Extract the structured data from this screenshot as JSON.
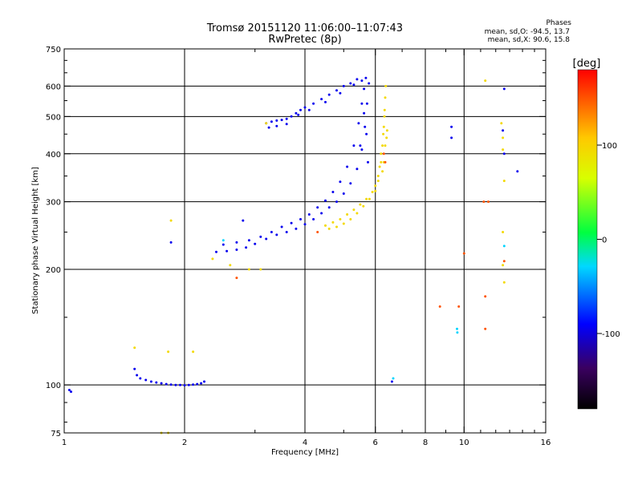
{
  "titles": {
    "line1": "Tromsø 20151120 11:06:00–11:07:43",
    "line2": "RwPretec (8p)"
  },
  "phases": {
    "heading": "Phases",
    "o_line": "mean, sd,O: -94.5, 13.7",
    "x_line": "mean, sd,X: 90.6, 15.8"
  },
  "chart_data": {
    "type": "scatter",
    "xlabel": "Frequency [MHz]",
    "ylabel": "Stationary phase Virtual Height [km]",
    "xscale": "log",
    "yscale": "log",
    "xlim": [
      1,
      16
    ],
    "ylim": [
      75,
      750
    ],
    "xticks": [
      1,
      2,
      4,
      6,
      8,
      10,
      16
    ],
    "yticks": [
      75,
      100,
      200,
      300,
      400,
      500,
      600,
      750
    ],
    "xgrid": [
      2,
      4,
      6,
      8,
      10
    ],
    "ygrid": [
      100,
      200,
      300,
      400,
      500,
      600
    ],
    "colorbar": {
      "label": "[deg]",
      "range": [
        -180,
        180
      ],
      "ticks": [
        100,
        0,
        -100
      ]
    },
    "series": [
      {
        "phase_deg": -95,
        "points": [
          [
            1.03,
            97
          ],
          [
            1.04,
            96
          ],
          [
            1.5,
            110
          ],
          [
            1.52,
            106
          ],
          [
            1.55,
            104
          ],
          [
            1.6,
            103
          ],
          [
            1.65,
            102
          ],
          [
            1.7,
            101.5
          ],
          [
            1.75,
            101
          ],
          [
            1.8,
            100.5
          ],
          [
            1.85,
            100.2
          ],
          [
            1.9,
            100
          ],
          [
            1.95,
            100
          ],
          [
            2.0,
            99.8
          ],
          [
            2.05,
            100
          ],
          [
            2.1,
            100.2
          ],
          [
            2.15,
            100.5
          ],
          [
            2.2,
            101
          ],
          [
            2.24,
            102
          ],
          [
            2.4,
            222
          ],
          [
            2.55,
            223
          ],
          [
            2.7,
            225
          ],
          [
            2.85,
            228
          ],
          [
            3.0,
            233
          ],
          [
            3.2,
            240
          ],
          [
            3.4,
            246
          ],
          [
            3.6,
            250
          ],
          [
            3.8,
            255
          ],
          [
            4.0,
            262
          ],
          [
            4.2,
            270
          ],
          [
            4.4,
            280
          ],
          [
            4.6,
            290
          ],
          [
            4.8,
            300
          ],
          [
            5.0,
            315
          ],
          [
            5.2,
            335
          ],
          [
            5.4,
            365
          ],
          [
            5.55,
            410
          ],
          [
            5.65,
            470
          ],
          [
            5.72,
            540
          ],
          [
            5.78,
            610
          ],
          [
            2.5,
            232
          ],
          [
            2.7,
            235
          ],
          [
            2.9,
            238
          ],
          [
            3.1,
            243
          ],
          [
            3.3,
            250
          ],
          [
            3.5,
            258
          ],
          [
            3.7,
            264
          ],
          [
            3.9,
            270
          ],
          [
            4.1,
            278
          ],
          [
            4.3,
            290
          ],
          [
            4.5,
            302
          ],
          [
            4.7,
            318
          ],
          [
            4.9,
            338
          ],
          [
            5.1,
            370
          ],
          [
            5.3,
            420
          ],
          [
            5.45,
            480
          ],
          [
            5.55,
            540
          ],
          [
            5.62,
            590
          ],
          [
            5.68,
            630
          ],
          [
            3.2,
            480
          ],
          [
            3.3,
            485
          ],
          [
            3.4,
            488
          ],
          [
            3.5,
            490
          ],
          [
            3.6,
            493
          ],
          [
            3.7,
            500
          ],
          [
            3.8,
            510
          ],
          [
            3.9,
            520
          ],
          [
            4.0,
            528
          ],
          [
            4.2,
            540
          ],
          [
            4.4,
            555
          ],
          [
            4.6,
            570
          ],
          [
            4.8,
            585
          ],
          [
            5.0,
            600
          ],
          [
            5.2,
            610
          ],
          [
            5.4,
            625
          ],
          [
            3.25,
            468
          ],
          [
            3.4,
            472
          ],
          [
            3.6,
            478
          ],
          [
            3.85,
            505
          ],
          [
            4.1,
            520
          ],
          [
            4.5,
            545
          ],
          [
            4.9,
            575
          ],
          [
            5.3,
            605
          ],
          [
            5.55,
            620
          ],
          [
            1.85,
            235
          ],
          [
            9.3,
            470
          ],
          [
            9.3,
            440
          ],
          [
            12.5,
            460
          ],
          [
            12.6,
            400
          ],
          [
            13.6,
            360
          ],
          [
            12.6,
            590
          ],
          [
            6.6,
            102
          ],
          [
            2.8,
            268
          ],
          [
            5.5,
            420
          ],
          [
            5.62,
            510
          ],
          [
            5.7,
            450
          ],
          [
            5.75,
            380
          ]
        ]
      },
      {
        "phase_deg": 95,
        "points": [
          [
            4.5,
            260
          ],
          [
            4.7,
            265
          ],
          [
            4.9,
            270
          ],
          [
            5.1,
            278
          ],
          [
            5.3,
            286
          ],
          [
            5.5,
            295
          ],
          [
            5.7,
            305
          ],
          [
            5.9,
            318
          ],
          [
            6.0,
            330
          ],
          [
            6.1,
            350
          ],
          [
            6.2,
            380
          ],
          [
            6.25,
            420
          ],
          [
            6.3,
            470
          ],
          [
            6.33,
            520
          ],
          [
            6.35,
            560
          ],
          [
            6.37,
            600
          ],
          [
            4.6,
            255
          ],
          [
            4.8,
            258
          ],
          [
            5.0,
            263
          ],
          [
            5.2,
            270
          ],
          [
            5.4,
            280
          ],
          [
            5.6,
            292
          ],
          [
            5.8,
            305
          ],
          [
            6.0,
            320
          ],
          [
            6.1,
            340
          ],
          [
            6.15,
            370
          ],
          [
            6.2,
            400
          ],
          [
            6.28,
            450
          ],
          [
            6.32,
            500
          ],
          [
            6.25,
            360
          ],
          [
            6.3,
            380
          ],
          [
            6.35,
            420
          ],
          [
            6.4,
            440
          ],
          [
            6.42,
            460
          ],
          [
            1.5,
            125
          ],
          [
            1.82,
            122
          ],
          [
            2.1,
            122
          ],
          [
            1.85,
            268
          ],
          [
            2.6,
            205
          ],
          [
            2.9,
            200
          ],
          [
            3.1,
            200
          ],
          [
            2.35,
            213
          ],
          [
            3.2,
            480
          ],
          [
            12.4,
            480
          ],
          [
            12.5,
            440
          ],
          [
            12.5,
            410
          ],
          [
            12.6,
            340
          ],
          [
            11.3,
            620
          ],
          [
            12.5,
            250
          ],
          [
            12.6,
            185
          ],
          [
            12.5,
            205
          ],
          [
            1.75,
            75
          ],
          [
            1.82,
            75
          ]
        ]
      },
      {
        "phase_deg": 150,
        "points": [
          [
            6.3,
            400
          ],
          [
            6.35,
            380
          ],
          [
            4.3,
            250
          ],
          [
            2.7,
            190
          ],
          [
            8.7,
            160
          ],
          [
            9.7,
            160
          ],
          [
            10.0,
            220
          ],
          [
            11.2,
            300
          ],
          [
            11.5,
            300
          ],
          [
            11.3,
            170
          ],
          [
            11.3,
            140
          ],
          [
            12.6,
            210
          ]
        ]
      },
      {
        "phase_deg": -30,
        "points": [
          [
            9.6,
            140
          ],
          [
            9.62,
            137
          ],
          [
            12.6,
            230
          ],
          [
            2.5,
            238
          ],
          [
            6.65,
            104
          ]
        ]
      }
    ]
  }
}
